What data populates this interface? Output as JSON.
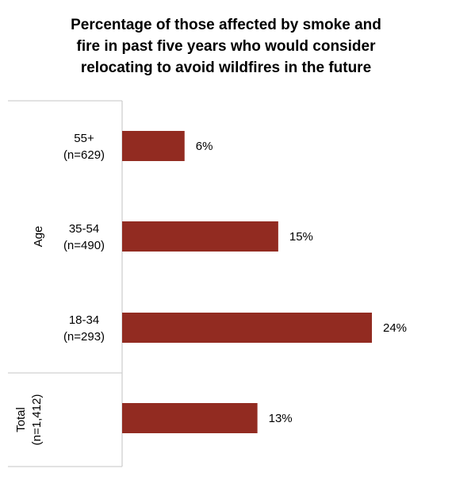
{
  "chart_data": {
    "type": "bar",
    "orientation": "horizontal",
    "title_lines": [
      "Percentage of those affected by smoke and",
      "fire in past five years who would consider",
      "relocating to avoid wildfires in the future"
    ],
    "groups": [
      {
        "label": "Age",
        "categories": [
          {
            "label": "55+",
            "n": "(n=629)",
            "value": 6,
            "display": "6%"
          },
          {
            "label": "35-54",
            "n": "(n=490)",
            "value": 15,
            "display": "15%"
          },
          {
            "label": "18-34",
            "n": "(n=293)",
            "value": 24,
            "display": "24%"
          }
        ]
      },
      {
        "label": "Total",
        "label_line2": "(n=1,412)",
        "categories": [
          {
            "label": "",
            "n": "",
            "value": 13,
            "display": "13%"
          }
        ]
      }
    ],
    "bar_color": "#922B21",
    "xlim": [
      0,
      24
    ],
    "grid": false,
    "legend": "none"
  }
}
